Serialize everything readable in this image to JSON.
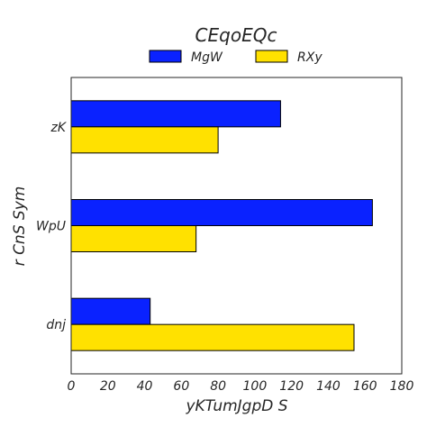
{
  "chart_data": {
    "type": "bar",
    "orientation": "horizontal",
    "title": "CEqoEQc",
    "xlabel": "yKTumJgpD  S",
    "ylabel": "r CnS Sym",
    "categories": [
      "zK",
      "WpU",
      "dnj"
    ],
    "series": [
      {
        "name": "MgW",
        "color": "#0a22ff",
        "values": [
          114,
          164,
          43
        ]
      },
      {
        "name": "RXy",
        "color": "#ffe100",
        "values": [
          80,
          68,
          154
        ]
      }
    ],
    "xlim": [
      0,
      180
    ],
    "xticks": [
      0,
      20,
      40,
      60,
      80,
      100,
      120,
      140,
      160,
      180
    ],
    "grid": false,
    "legend_position": "top-center"
  }
}
